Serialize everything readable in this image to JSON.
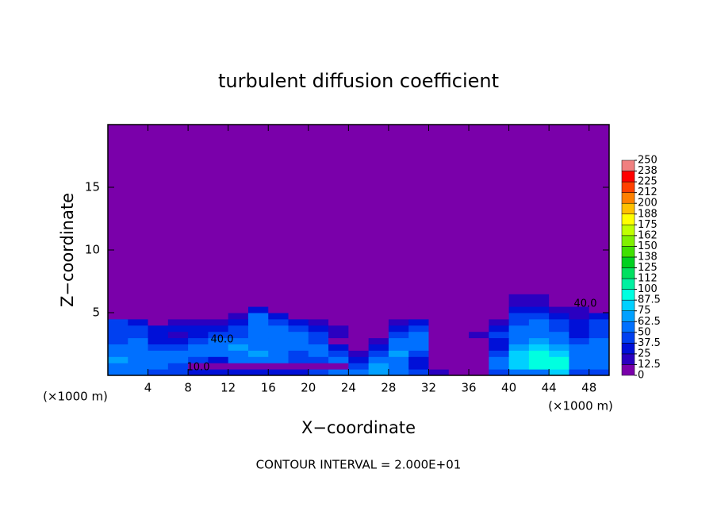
{
  "chart_data": {
    "type": "contour",
    "title": "turbulent diffusion coefficient",
    "xlabel": "X−coordinate",
    "ylabel": "Z−coordinate",
    "x_unit_label": "(×1000 m)",
    "footer": "CONTOUR INTERVAL = 2.000E+01",
    "contour_labels": [
      "40.0",
      "10.0",
      "40.0"
    ],
    "xlim": [
      0,
      50
    ],
    "ylim": [
      0,
      20
    ],
    "xticks": [
      4,
      8,
      12,
      16,
      20,
      24,
      28,
      32,
      36,
      40,
      44,
      48
    ],
    "yticks": [
      5,
      10,
      15
    ],
    "x": [
      1,
      3,
      5,
      7,
      9,
      11,
      13,
      15,
      17,
      19,
      21,
      23,
      25,
      27,
      29,
      31,
      33,
      35,
      37,
      39,
      41,
      43,
      45,
      47,
      49
    ],
    "y": [
      0.25,
      0.75,
      1.25,
      1.75,
      2.25,
      2.75,
      3.25,
      3.75,
      4.25,
      4.75,
      5.25,
      5.75,
      6.25,
      6.75,
      7.25
    ],
    "z": [
      [
        50,
        50,
        40,
        40,
        30,
        30,
        30,
        30,
        30,
        30,
        40,
        60,
        50,
        70,
        60,
        40,
        20,
        10,
        10,
        40,
        60,
        60,
        80,
        40,
        40
      ],
      [
        60,
        60,
        50,
        40,
        5,
        5,
        5,
        5,
        5,
        5,
        5,
        5,
        40,
        70,
        50,
        30,
        10,
        0,
        10,
        50,
        80,
        90,
        90,
        50,
        50
      ],
      [
        70,
        60,
        60,
        50,
        40,
        30,
        50,
        60,
        50,
        40,
        40,
        50,
        30,
        60,
        60,
        30,
        0,
        0,
        0,
        50,
        80,
        90,
        90,
        60,
        50
      ],
      [
        60,
        60,
        50,
        50,
        50,
        50,
        60,
        70,
        50,
        40,
        50,
        40,
        20,
        40,
        70,
        40,
        0,
        0,
        0,
        40,
        80,
        90,
        80,
        60,
        60
      ],
      [
        50,
        60,
        40,
        40,
        50,
        60,
        70,
        60,
        50,
        50,
        60,
        30,
        10,
        30,
        60,
        50,
        0,
        0,
        0,
        30,
        70,
        80,
        70,
        50,
        60
      ],
      [
        40,
        50,
        30,
        30,
        40,
        50,
        60,
        50,
        50,
        50,
        40,
        10,
        5,
        20,
        50,
        50,
        0,
        0,
        10,
        30,
        60,
        70,
        60,
        40,
        50
      ],
      [
        40,
        40,
        30,
        20,
        30,
        40,
        40,
        60,
        60,
        50,
        40,
        20,
        0,
        10,
        40,
        50,
        0,
        10,
        20,
        40,
        50,
        60,
        50,
        30,
        40
      ],
      [
        40,
        40,
        30,
        30,
        30,
        30,
        40,
        60,
        50,
        40,
        30,
        20,
        0,
        10,
        30,
        40,
        0,
        10,
        0,
        30,
        50,
        60,
        40,
        30,
        40
      ],
      [
        40,
        30,
        10,
        20,
        20,
        20,
        30,
        60,
        40,
        30,
        20,
        10,
        0,
        0,
        20,
        30,
        0,
        0,
        0,
        20,
        40,
        50,
        40,
        30,
        40
      ],
      [
        5,
        5,
        0,
        0,
        0,
        10,
        20,
        50,
        30,
        10,
        5,
        0,
        0,
        0,
        0,
        10,
        0,
        0,
        0,
        10,
        40,
        40,
        30,
        20,
        30
      ],
      [
        0,
        0,
        0,
        0,
        0,
        0,
        10,
        30,
        10,
        0,
        0,
        0,
        0,
        0,
        0,
        0,
        0,
        0,
        0,
        0,
        30,
        30,
        20,
        20,
        10
      ],
      [
        0,
        0,
        0,
        0,
        0,
        0,
        0,
        0,
        0,
        0,
        0,
        0,
        0,
        0,
        0,
        0,
        0,
        0,
        0,
        0,
        20,
        20,
        10,
        5,
        0
      ],
      [
        0,
        0,
        0,
        0,
        0,
        0,
        0,
        0,
        0,
        0,
        0,
        0,
        0,
        0,
        0,
        0,
        0,
        0,
        0,
        5,
        20,
        20,
        10,
        5,
        0
      ],
      [
        0,
        0,
        0,
        0,
        0,
        0,
        0,
        0,
        0,
        0,
        0,
        0,
        0,
        0,
        0,
        0,
        0,
        0,
        0,
        0,
        10,
        10,
        0,
        0,
        0
      ],
      [
        0,
        0,
        0,
        0,
        0,
        0,
        0,
        0,
        0,
        0,
        0,
        0,
        0,
        0,
        0,
        0,
        0,
        0,
        0,
        0,
        0,
        5,
        0,
        0,
        0
      ]
    ],
    "colorbar": {
      "lim": [
        0,
        250
      ],
      "ticks": [
        0,
        12.5,
        25,
        37.5,
        50,
        62.5,
        75,
        87.5,
        100,
        {
          "value": 112.5,
          "label": "112"
        },
        125,
        {
          "value": 137.5,
          "label": "138"
        },
        150,
        {
          "value": 162.5,
          "label": "162"
        },
        175,
        {
          "value": 187.5,
          "label": "188"
        },
        200,
        {
          "value": 212.5,
          "label": "212"
        },
        225,
        {
          "value": 237.5,
          "label": "238"
        },
        250
      ],
      "colors": [
        "#7a00aa",
        "#2a00c0",
        "#0010d8",
        "#0040f0",
        "#0070ff",
        "#00a0ff",
        "#00d0ff",
        "#00ffe0",
        "#00f0a0",
        "#00e060",
        "#00d020",
        "#40e000",
        "#80f000",
        "#c0ff00",
        "#ffff00",
        "#ffc000",
        "#ff8000",
        "#ff4000",
        "#ff0000",
        "#f08080"
      ]
    }
  }
}
